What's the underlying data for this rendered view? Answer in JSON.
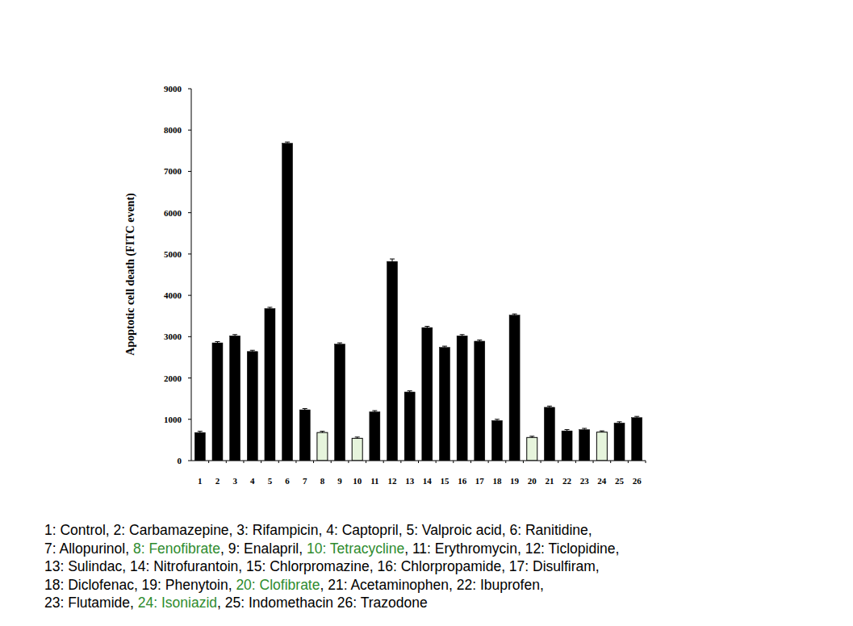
{
  "chart_data": {
    "type": "bar",
    "y_label": "Apoptotic cell death (FITC event)",
    "categories": [
      "1",
      "2",
      "3",
      "4",
      "5",
      "6",
      "7",
      "8",
      "9",
      "10",
      "11",
      "12",
      "13",
      "14",
      "15",
      "16",
      "17",
      "18",
      "19",
      "20",
      "21",
      "22",
      "23",
      "24",
      "25",
      "26"
    ],
    "values": [
      680,
      2850,
      3020,
      2640,
      3680,
      7680,
      1230,
      680,
      2820,
      540,
      1180,
      4820,
      1660,
      3220,
      2740,
      3020,
      2890,
      970,
      3520,
      560,
      1290,
      720,
      750,
      690,
      910,
      1040
    ],
    "errors": [
      30,
      30,
      30,
      30,
      30,
      30,
      30,
      30,
      30,
      30,
      30,
      60,
      30,
      30,
      30,
      30,
      30,
      30,
      30,
      30,
      30,
      30,
      30,
      30,
      30,
      30
    ],
    "colors": [
      "#000000",
      "#000000",
      "#000000",
      "#000000",
      "#000000",
      "#000000",
      "#000000",
      "#e6f4dc",
      "#000000",
      "#e6f4dc",
      "#000000",
      "#000000",
      "#000000",
      "#000000",
      "#000000",
      "#000000",
      "#000000",
      "#000000",
      "#000000",
      "#e6f4dc",
      "#000000",
      "#000000",
      "#000000",
      "#e6f4dc",
      "#000000",
      "#000000"
    ],
    "ylim": [
      0,
      9000
    ],
    "yticks": [
      0,
      1000,
      2000,
      3000,
      4000,
      5000,
      6000,
      7000,
      8000,
      9000
    ],
    "grid": false,
    "annotations": [
      [
        {
          "text": "1: Control, 2: Carbamazepine, 3: Rifampicin, 4: Captopril, 5: Valproic acid, 6: Ranitidine,",
          "color": "#000000"
        }
      ],
      [
        {
          "text": "7: Allopurinol, ",
          "color": "#000000"
        },
        {
          "text": "8: Fenofibrate",
          "color": "#2e8b2e"
        },
        {
          "text": ", 9: Enalapril, ",
          "color": "#000000"
        },
        {
          "text": "10: Tetracycline",
          "color": "#2e8b2e"
        },
        {
          "text": ", 11: Erythromycin, 12: Ticlopidine,",
          "color": "#000000"
        }
      ],
      [
        {
          "text": "13: Sulindac, 14: Nitrofurantoin, 15: Chlorpromazine, 16: Chlorpropamide, 17: Disulfiram,",
          "color": "#000000"
        }
      ],
      [
        {
          "text": "18: Diclofenac, 19: Phenytoin, ",
          "color": "#000000"
        },
        {
          "text": "20: Clofibrate",
          "color": "#2e8b2e"
        },
        {
          "text": ", 21: Acetaminophen, 22: Ibuprofen,",
          "color": "#000000"
        }
      ],
      [
        {
          "text": "23: Flutamide, ",
          "color": "#000000"
        },
        {
          "text": "24: Isoniazid",
          "color": "#2e8b2e"
        },
        {
          "text": ", 25: Indomethacin 26: Trazodone",
          "color": "#000000"
        }
      ]
    ]
  }
}
